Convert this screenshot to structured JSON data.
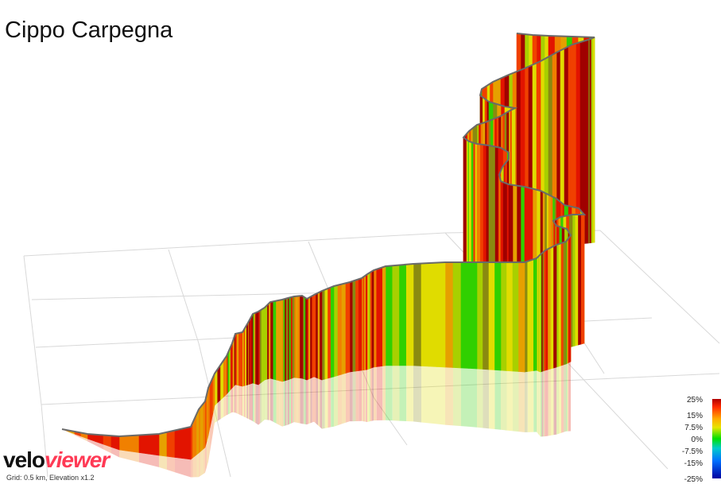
{
  "title": "Cippo Carpegna",
  "legend": {
    "labels": [
      "25%",
      "15%",
      "7.5%",
      "0%",
      "-7.5%",
      "-15%",
      "-25%"
    ]
  },
  "logo": {
    "part1": "velo",
    "part2": "viewer"
  },
  "footer": {
    "grid_info": "Grid: 0.5 km, Elevation x1.2"
  },
  "colors": {
    "dark_red": "#a00000",
    "red": "#e21400",
    "orange_red": "#f04000",
    "orange": "#f08000",
    "amber": "#e6a000",
    "yellow": "#e0dc00",
    "yellow_green": "#a8d000",
    "green": "#30d000",
    "olive": "#8a8a10",
    "grid": "#d8d8d8",
    "outline": "#6a6a6a"
  }
}
